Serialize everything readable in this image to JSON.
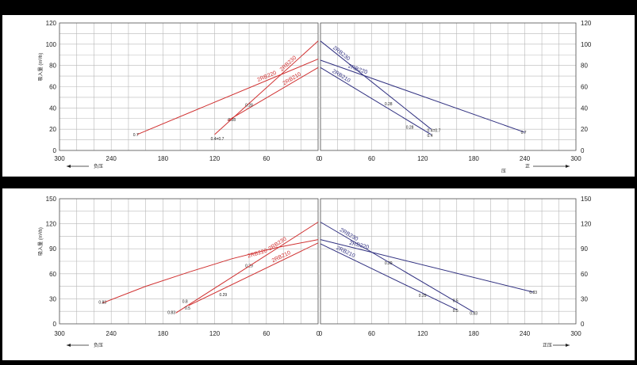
{
  "chart_data": [
    {
      "type": "line",
      "ylabel": "吸入量 (m³/h)",
      "ylim": [
        0,
        120
      ],
      "yticks": [
        0,
        20,
        40,
        60,
        80,
        100,
        120
      ],
      "xticks_left": [
        "300",
        "240",
        "180",
        "120",
        "60",
        "0"
      ],
      "xticks_right": [
        "0",
        "60",
        "120",
        "180",
        "240",
        "300"
      ],
      "left_direction_label": "负压",
      "right_direction_label": "压",
      "right_arrow_label": "正",
      "left_series": [
        {
          "name": "2RB220",
          "color": "#d03030",
          "points": [
            [
              210,
              15
            ],
            [
              0,
              86
            ]
          ],
          "marks": [
            {
              "x": 210,
              "y": 15,
              "text": "0.7"
            }
          ]
        },
        {
          "name": "2RB230",
          "color": "#d03030",
          "points": [
            [
              120,
              15
            ],
            [
              0,
              103
            ]
          ],
          "marks": [
            {
              "x": 120,
              "y": 11,
              "text": "0.4=0.7"
            },
            {
              "x": 100,
              "y": 29,
              "text": "0.28"
            }
          ]
        },
        {
          "name": "2RB210",
          "color": "#d03030",
          "points": [
            [
              105,
              28
            ],
            [
              0,
              78
            ]
          ],
          "marks": [
            {
              "x": 80,
              "y": 43,
              "text": "0.28"
            }
          ]
        }
      ],
      "right_series": [
        {
          "name": "2RB230",
          "color": "#303080",
          "points": [
            [
              0,
              103
            ],
            [
              130,
              20
            ]
          ],
          "marks": [
            {
              "x": 80,
              "y": 44,
              "text": "0.28"
            },
            {
              "x": 130,
              "y": 19,
              "text": "0.4=0.7"
            }
          ]
        },
        {
          "name": "2RB210",
          "color": "#303080",
          "points": [
            [
              0,
              78
            ],
            [
              130,
              15
            ]
          ],
          "marks": [
            {
              "x": 105,
              "y": 22,
              "text": "0.28"
            },
            {
              "x": 130,
              "y": 14,
              "text": "0.4"
            }
          ]
        },
        {
          "name": "2RB220",
          "color": "#303080",
          "points": [
            [
              0,
              85
            ],
            [
              240,
              17
            ]
          ],
          "marks": [
            {
              "x": 240,
              "y": 17,
              "text": "0.7"
            }
          ]
        }
      ]
    },
    {
      "type": "line",
      "ylabel": "吸入量 (m³/h)",
      "ylim": [
        0,
        150
      ],
      "yticks": [
        0,
        30,
        60,
        90,
        120,
        150
      ],
      "xticks_left": [
        "300",
        "240",
        "180",
        "120",
        "60",
        "0"
      ],
      "xticks_right": [
        "0",
        "60",
        "120",
        "180",
        "240",
        "300"
      ],
      "left_direction_label": "负压",
      "right_direction_label": "正压",
      "left_series": [
        {
          "name": "2RB220",
          "color": "#d03030",
          "points": [
            [
              250,
              25
            ],
            [
              200,
              45
            ],
            [
              150,
              62
            ],
            [
              100,
              78
            ],
            [
              50,
              91
            ],
            [
              0,
              101
            ]
          ],
          "marks": [
            {
              "x": 250,
              "y": 26,
              "text": "0.83"
            },
            {
              "x": 80,
              "y": 70,
              "text": "0.29"
            }
          ]
        },
        {
          "name": "2RB230",
          "color": "#d03030",
          "points": [
            [
              165,
              13
            ],
            [
              0,
              122
            ]
          ],
          "marks": [
            {
              "x": 170,
              "y": 14,
              "text": "0.83"
            },
            {
              "x": 153,
              "y": 27,
              "text": "0.8"
            },
            {
              "x": 150,
              "y": 19,
              "text": "0.5"
            }
          ]
        },
        {
          "name": "2RB210",
          "color": "#d03030",
          "points": [
            [
              150,
              22
            ],
            [
              0,
              97
            ]
          ],
          "marks": [
            {
              "x": 110,
              "y": 35,
              "text": "0.29"
            }
          ]
        }
      ],
      "right_series": [
        {
          "name": "2RB230",
          "color": "#303080",
          "points": [
            [
              0,
              122
            ],
            [
              180,
              14
            ]
          ],
          "marks": [
            {
              "x": 160,
              "y": 28,
              "text": "0.5"
            },
            {
              "x": 180,
              "y": 13,
              "text": "0.83"
            }
          ]
        },
        {
          "name": "2RB220",
          "color": "#303080",
          "points": [
            [
              0,
              101
            ],
            [
              250,
              38
            ]
          ],
          "marks": [
            {
              "x": 250,
              "y": 38,
              "text": "0.83"
            },
            {
              "x": 80,
              "y": 73,
              "text": "0.29"
            }
          ]
        },
        {
          "name": "2RB210",
          "color": "#303080",
          "points": [
            [
              0,
              96
            ],
            [
              160,
              17
            ]
          ],
          "marks": [
            {
              "x": 120,
              "y": 34,
              "text": "0.29"
            },
            {
              "x": 160,
              "y": 16,
              "text": "0.5"
            }
          ]
        }
      ]
    }
  ]
}
